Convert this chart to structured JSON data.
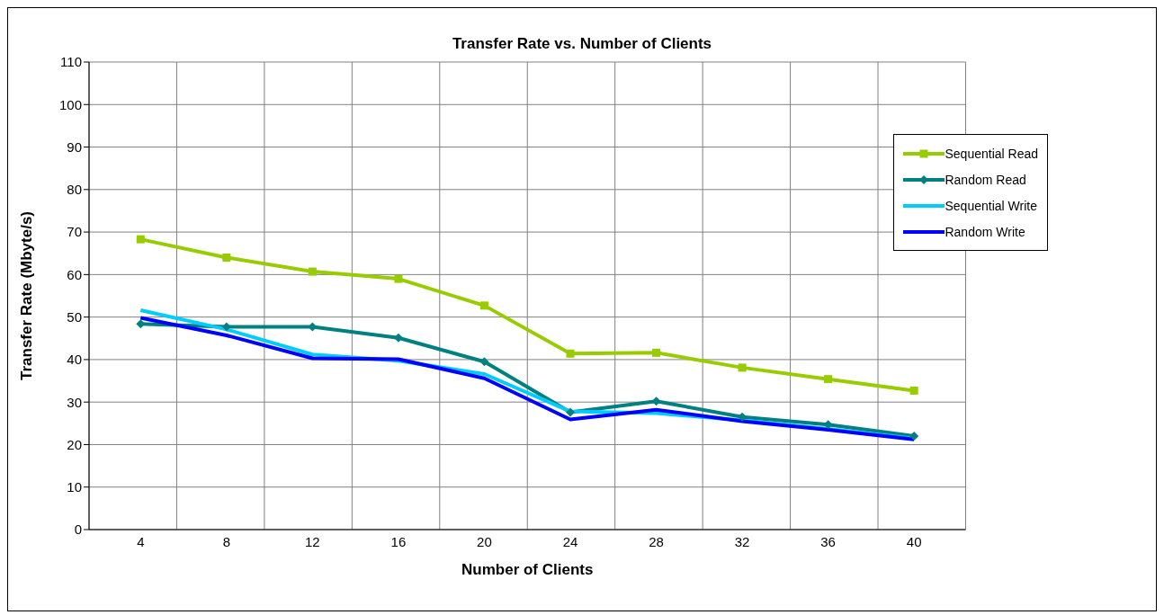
{
  "chart_data": {
    "type": "line",
    "title": "Transfer Rate vs. Number of Clients",
    "xlabel": "Number of Clients",
    "ylabel": "Transfer Rate (Mbyte/s)",
    "categories": [
      "4",
      "8",
      "12",
      "16",
      "20",
      "24",
      "28",
      "32",
      "36",
      "40"
    ],
    "series": [
      {
        "name": "Sequential Read",
        "color": "#99cc00",
        "marker": "square",
        "values": [
          68.3,
          64.0,
          60.7,
          59.0,
          52.7,
          41.4,
          41.6,
          38.1,
          35.4,
          32.7
        ]
      },
      {
        "name": "Random Read",
        "color": "#008080",
        "marker": "diamond",
        "values": [
          48.4,
          47.7,
          47.7,
          45.1,
          39.5,
          27.6,
          30.2,
          26.5,
          24.7,
          22.0
        ]
      },
      {
        "name": "Sequential Write",
        "color": "#00ccff",
        "marker": "none",
        "values": [
          51.6,
          47.1,
          41.2,
          39.7,
          36.6,
          27.8,
          27.4,
          25.7,
          23.7,
          21.4
        ]
      },
      {
        "name": "Random Write",
        "color": "#0000ff",
        "marker": "none",
        "values": [
          49.8,
          45.7,
          40.3,
          40.1,
          35.6,
          25.9,
          28.2,
          25.5,
          23.5,
          21.2
        ]
      }
    ],
    "ylim": [
      0,
      110
    ],
    "yticks": [
      0,
      10,
      20,
      30,
      40,
      50,
      60,
      70,
      80,
      90,
      100,
      110
    ],
    "grid": true,
    "legend": "top right",
    "line_style": "solid"
  }
}
